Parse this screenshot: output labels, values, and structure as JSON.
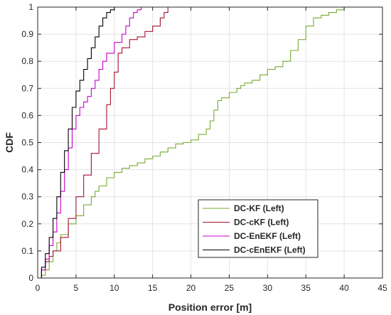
{
  "chart_data": {
    "type": "line",
    "xlabel": "Position error [m]",
    "ylabel": "CDF",
    "xlim": [
      0,
      45
    ],
    "ylim": [
      0,
      1
    ],
    "xticks": [
      0,
      5,
      10,
      15,
      20,
      25,
      30,
      35,
      40,
      45
    ],
    "yticks": [
      0,
      0.1,
      0.2,
      0.3,
      0.4,
      0.5,
      0.6,
      0.7,
      0.8,
      0.9,
      1
    ],
    "xtick_labels": [
      "0",
      "5",
      "10",
      "15",
      "20",
      "25",
      "30",
      "35",
      "40",
      "45"
    ],
    "ytick_labels": [
      "0",
      "0.1",
      "0.2",
      "0.3",
      "0.4",
      "0.5",
      "0.6",
      "0.7",
      "0.8",
      "0.9",
      "1"
    ],
    "grid": true,
    "legend_position": "bottom-right",
    "series": [
      {
        "name": "DC-KF (Left)",
        "color": "#77ac30",
        "x": [
          0,
          0.5,
          1,
          1.5,
          2,
          2.5,
          3,
          4,
          5,
          6,
          7,
          7.5,
          8,
          9,
          10,
          11,
          12,
          13,
          14,
          15,
          16,
          17,
          18,
          19,
          20,
          21,
          22,
          22.5,
          23,
          23.5,
          24,
          25,
          26,
          26.5,
          27,
          28,
          29,
          30,
          31,
          32,
          33,
          34,
          35,
          36,
          37,
          38,
          39,
          40
        ],
        "y": [
          0,
          0.01,
          0.03,
          0.06,
          0.1,
          0.13,
          0.16,
          0.2,
          0.23,
          0.27,
          0.3,
          0.32,
          0.34,
          0.37,
          0.39,
          0.405,
          0.415,
          0.425,
          0.44,
          0.45,
          0.465,
          0.48,
          0.495,
          0.5,
          0.51,
          0.53,
          0.55,
          0.58,
          0.62,
          0.655,
          0.665,
          0.685,
          0.7,
          0.71,
          0.72,
          0.73,
          0.75,
          0.77,
          0.78,
          0.8,
          0.84,
          0.88,
          0.93,
          0.96,
          0.97,
          0.98,
          0.99,
          1
        ]
      },
      {
        "name": "DC-cKF (Left)",
        "color": "#a2142f",
        "x": [
          0,
          0.5,
          1,
          1.5,
          2,
          3,
          4,
          5,
          6,
          7,
          8,
          9,
          9.5,
          10,
          10.5,
          11,
          12,
          13,
          14,
          15,
          16,
          16.5,
          17
        ],
        "y": [
          0,
          0.03,
          0.06,
          0.08,
          0.1,
          0.15,
          0.22,
          0.3,
          0.38,
          0.46,
          0.55,
          0.64,
          0.7,
          0.76,
          0.83,
          0.85,
          0.88,
          0.89,
          0.91,
          0.93,
          0.96,
          0.98,
          1
        ]
      },
      {
        "name": "DC-EnEKF (Left)",
        "color": "#c800c8",
        "x": [
          0,
          0.5,
          1,
          1.5,
          2,
          2.5,
          3,
          3.5,
          4,
          4.5,
          5,
          5.5,
          6,
          6.5,
          7,
          7.5,
          8,
          8.5,
          9,
          10,
          11,
          11.5,
          12,
          12.5,
          13,
          13.5
        ],
        "y": [
          0,
          0.03,
          0.07,
          0.12,
          0.17,
          0.24,
          0.32,
          0.4,
          0.48,
          0.55,
          0.6,
          0.63,
          0.65,
          0.67,
          0.7,
          0.73,
          0.77,
          0.8,
          0.83,
          0.87,
          0.9,
          0.93,
          0.96,
          0.98,
          0.99,
          1
        ]
      },
      {
        "name": "DC-cEnEKF (Left)",
        "color": "#000000",
        "x": [
          0,
          0.5,
          1,
          1.5,
          2,
          2.5,
          3,
          3.5,
          4,
          4.5,
          5,
          5.5,
          6,
          6.5,
          7,
          7.5,
          8,
          8.5,
          9,
          9.5,
          10
        ],
        "y": [
          0,
          0.04,
          0.09,
          0.15,
          0.22,
          0.3,
          0.39,
          0.47,
          0.55,
          0.63,
          0.69,
          0.73,
          0.77,
          0.81,
          0.85,
          0.89,
          0.93,
          0.96,
          0.98,
          0.99,
          1
        ]
      }
    ]
  }
}
